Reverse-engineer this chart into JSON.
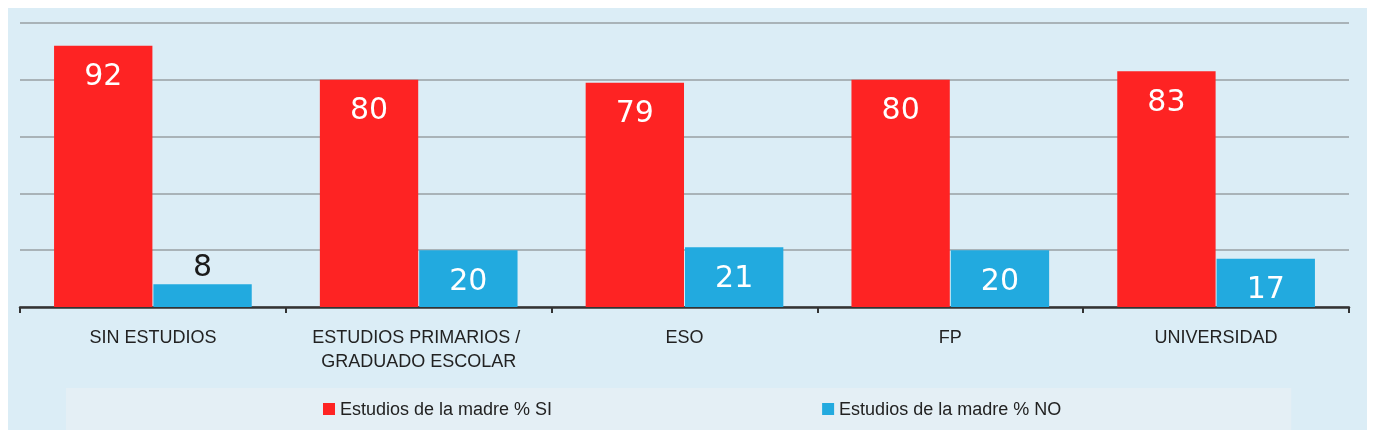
{
  "chart_data": {
    "type": "bar",
    "categories": [
      "SIN ESTUDIOS",
      "ESTUDIOS PRIMARIOS / GRADUADO ESCOLAR",
      "ESO",
      "FP",
      "UNIVERSIDAD"
    ],
    "series": [
      {
        "name": "Estudios de la madre % SI",
        "color": "#fe2323",
        "values": [
          92,
          80,
          79,
          80,
          83
        ]
      },
      {
        "name": "Estudios de la madre % NO",
        "color": "#22aadf",
        "values": [
          8,
          20,
          21,
          20,
          17
        ]
      }
    ],
    "ylim": [
      0,
      100
    ],
    "yticks": [
      {
        "value": 0,
        "label": null
      },
      {
        "value": 20,
        "label": null
      },
      {
        "value": 40,
        "label": null
      },
      {
        "value": 60,
        "label": null
      },
      {
        "value": 80,
        "label": null
      },
      {
        "value": 100,
        "label": null
      }
    ],
    "tick_labels": "x",
    "grid": "y",
    "legend": "bottom",
    "data_labels": true
  }
}
